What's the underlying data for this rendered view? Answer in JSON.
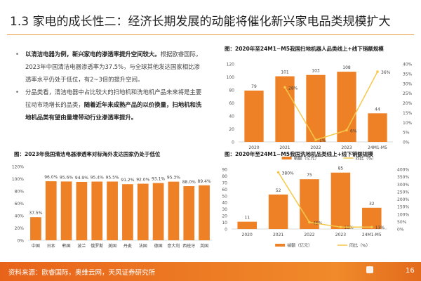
{
  "header": {
    "title": "1.3 家电的成长性二：经济长期发展的动能将催化新兴家电品类规模扩大"
  },
  "bullets": [
    {
      "bold": "以清洁电器为例，新兴家电的渗透率提升空间较大。",
      "text": "根据欧睿国际，2023年中国清洁电器渗透率为37.5%，与全球其他发达国家相比渗透率水平仍处于低位，有2~3倍的提升空间。",
      "tail": ""
    },
    {
      "bold": "",
      "text": "分品类看，清洁电器中占比较大的扫地机和洗地机产品未来将是主要拉动市场增长的品类，",
      "tail": "随着近年来成熟产品的以价换量，扫地机和洗地机品类有望由量增带动行业渗透率提升。"
    }
  ],
  "chart_data": [
    {
      "type": "bar+line",
      "title": "图：2020年至24M1−M5我国扫地机器人品类线上+线下销额规模",
      "categories": [
        "2020",
        "2021",
        "2022",
        "2023",
        "24M1-M5"
      ],
      "series": [
        {
          "name": "销额（亿元）",
          "type": "bar",
          "axis": "left",
          "values": [
            79,
            101,
            103,
            108,
            44
          ],
          "labels": [
            "79",
            "101",
            "103",
            "108",
            "44"
          ]
        },
        {
          "name": "同比（%）",
          "type": "line",
          "axis": "right",
          "values": [
            null,
            28,
            1,
            6,
            36
          ],
          "labels": [
            "",
            "28%",
            "1%",
            "6%",
            "36%"
          ]
        }
      ],
      "left_axis": {
        "min": 0,
        "max": 120,
        "ticks": [
          "0",
          "20",
          "40",
          "60",
          "80",
          "100",
          "120"
        ]
      },
      "right_axis": {
        "min": 0,
        "max": 40,
        "ticks": [
          "0%",
          "5%",
          "10%",
          "15%",
          "20%",
          "25%",
          "30%",
          "35%",
          "40%"
        ]
      },
      "legend": "bottom",
      "grid": false,
      "colors": {
        "bar": "#ee8126",
        "line": "#f5c84a"
      }
    },
    {
      "type": "bar",
      "title": "图：2023年我国清洁电器渗透率对标海外发达国家仍处于低位",
      "categories": [
        "中国",
        "日本",
        "韩国",
        "波兰",
        "俄罗斯",
        "美国",
        "丹麦",
        "法国",
        "德国",
        "意大利",
        "西班牙",
        "英国"
      ],
      "series": [
        {
          "type": "bar",
          "values": [
            37.5,
            96.0,
            95.6,
            94.9,
            95.4,
            95.5,
            91.2,
            92.0,
            93.1,
            95.3,
            88.0,
            89.4
          ],
          "labels": [
            "37.5%",
            "96.0%",
            "95.6%",
            "94.9%",
            "95.4%",
            "95.5%",
            "91.2%",
            "92.0%",
            "93.1%",
            "95.3%",
            "88.0%",
            "89.4%"
          ]
        }
      ],
      "left_axis": {
        "min": 0,
        "max": 120,
        "ticks": [
          "0%",
          "20%",
          "40%",
          "60%",
          "80%",
          "100%",
          "120%"
        ]
      },
      "legend": "none",
      "grid": false,
      "colors": {
        "bar": "#ee8126"
      }
    },
    {
      "type": "bar+line",
      "title": "图：2020年至24M1−M5我国洗地机品类线上+线下销额规模",
      "categories": [
        "2020",
        "2021",
        "2022",
        "2023",
        "24M1-M5"
      ],
      "series": [
        {
          "name": "销额（亿元）",
          "type": "bar",
          "axis": "left",
          "values": [
            11,
            52,
            75,
            85,
            32
          ],
          "labels": [
            "11",
            "52",
            "75",
            "85",
            "32"
          ]
        },
        {
          "name": "同比（%）",
          "type": "line",
          "axis": "right",
          "values": [
            null,
            380,
            45,
            13,
            13
          ],
          "labels": [
            "",
            "380%",
            "45%",
            "13%",
            "13%"
          ]
        }
      ],
      "left_axis": {
        "min": 0,
        "max": 90,
        "ticks": [
          "0",
          "10",
          "20",
          "30",
          "40",
          "50",
          "60",
          "70",
          "80",
          "90"
        ]
      },
      "right_axis": {
        "min": 0,
        "max": 400,
        "ticks": [
          "0%",
          "50%",
          "100%",
          "150%",
          "200%",
          "250%",
          "300%",
          "350%",
          "400%"
        ]
      },
      "legend": "bottom",
      "grid": false,
      "colors": {
        "bar": "#ee8126",
        "line": "#f5c84a"
      }
    }
  ],
  "footer": {
    "source": "资料来源：欧睿国际，奥维云网，天风证券研究所",
    "logo": "天风证券",
    "page": "16"
  }
}
